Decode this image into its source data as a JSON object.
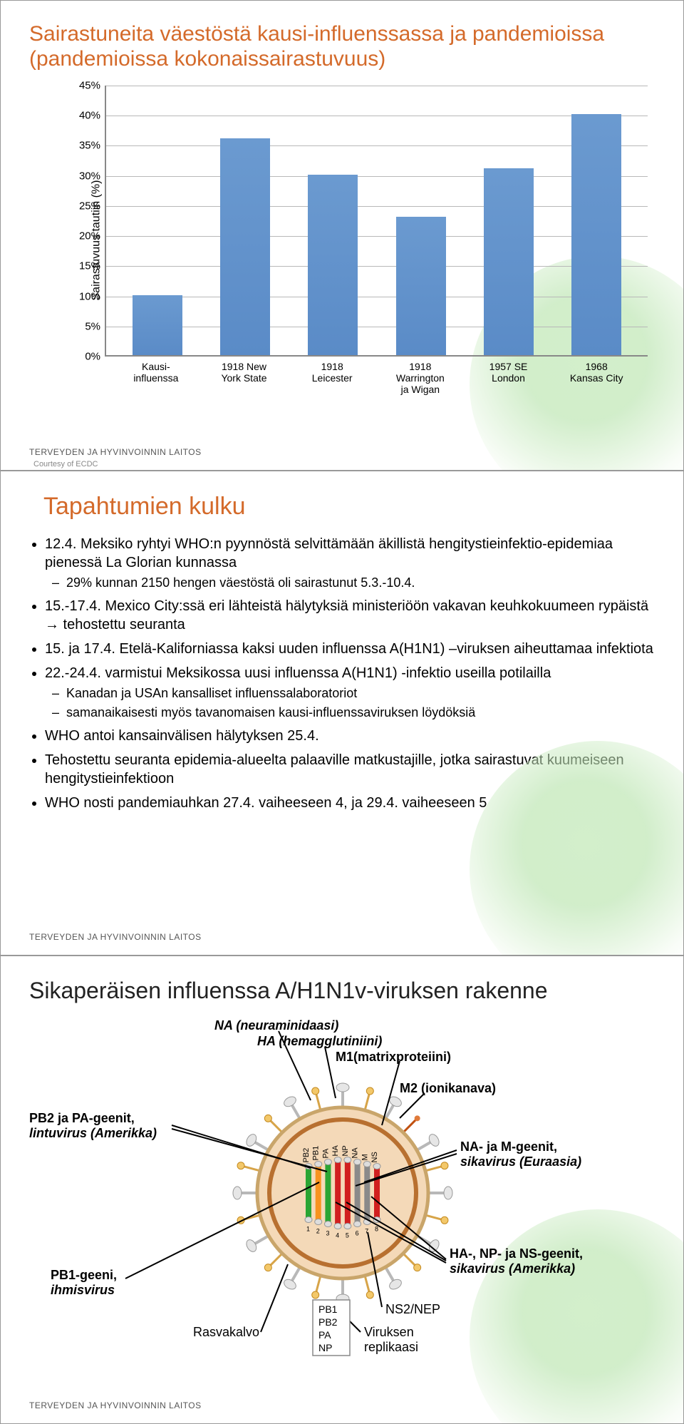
{
  "footer": "TERVEYDEN JA HYVINVOINNIN LAITOS",
  "slide1": {
    "title_color": "#d46a2a",
    "title": "Sairastuneita väestöstä kausi-influenssassa ja pandemioissa (pandemioissa kokonaissairastuvuus)",
    "y_label": "Sairastuvuus tautiin (%)",
    "y_ticks": [
      "0%",
      "5%",
      "10%",
      "15%",
      "20%",
      "25%",
      "30%",
      "35%",
      "40%",
      "45%"
    ],
    "y_max": 45,
    "bar_color": "#5a8bc7",
    "categories": [
      {
        "label": "Kausi-\ninfluenssa",
        "value": 10
      },
      {
        "label": "1918 New\nYork State",
        "value": 36
      },
      {
        "label": "1918\nLeicester",
        "value": 30
      },
      {
        "label": "1918\nWarrington\nja Wigan",
        "value": 23
      },
      {
        "label": "1957 SE\nLondon",
        "value": 31
      },
      {
        "label": "1968\nKansas City",
        "value": 40
      }
    ],
    "courtesy": "Courtesy of ECDC"
  },
  "slide2": {
    "title_color": "#d46a2a",
    "title": "Tapahtumien kulku",
    "bullets": [
      {
        "text": "12.4. Meksiko ryhtyi WHO:n pyynnöstä selvittämään äkillistä hengitystieinfektio-epidemiaa pienessä La Glorian kunnassa",
        "subs": [
          "29% kunnan 2150 hengen väestöstä oli sairastunut 5.3.-10.4."
        ]
      },
      {
        "text": "15.-17.4. Mexico City:ssä eri lähteistä hälytyksiä ministeriöön vakavan keuhkokuumeen rypäistä → tehostettu seuranta"
      },
      {
        "text": "15. ja 17.4. Etelä-Kaliforniassa kaksi uuden influenssa A(H1N1) –viruksen aiheuttamaa infektiota"
      },
      {
        "text": "22.-24.4. varmistui Meksikossa uusi influenssa A(H1N1) -infektio useilla potilailla",
        "subs": [
          "Kanadan ja USAn kansalliset influenssalaboratoriot",
          "samanaikaisesti myös tavanomaisen kausi-influenssaviruksen löydöksiä"
        ]
      },
      {
        "text": "WHO antoi kansainvälisen hälytyksen 25.4."
      },
      {
        "text": "Tehostettu seuranta epidemia-alueelta palaaville matkustajille, jotka sairastuvat kuumeiseen hengitystieinfektioon"
      },
      {
        "text": "WHO nosti pandemiauhkan 27.4. vaiheeseen 4, ja 29.4. vaiheeseen 5"
      }
    ]
  },
  "slide3": {
    "title_color": "#222222",
    "title": "Sikaperäisen influenssa A/H1N1v-viruksen rakenne",
    "labels": {
      "na": "NA (neuraminidaasi)",
      "ha": "HA (hemagglutiniini)",
      "m1": "M1(matrixproteiini)",
      "m2": "M2 (ionikanava)",
      "pb2pa_1": "PB2 ja PA-geenit,",
      "pb2pa_2": "lintuvirus (Amerikka)",
      "na_m_1": "NA- ja M-geenit,",
      "na_m_2": "sikavirus (Euraasia)",
      "pb1_1": "PB1-geeni,",
      "pb1_2": "ihmisvirus",
      "hanpns_1": "HA-, NP- ja NS-geenit,",
      "hanpns_2": "sikavirus (Amerikka)",
      "lipid": "Rasvakalvo",
      "ns2": "NS2/NEP",
      "repl_1": "Viruksen",
      "repl_2": "replikaasi",
      "pb_box": [
        "PB1",
        "PB2",
        "PA",
        "NP"
      ]
    },
    "segments": [
      {
        "name": "PB2",
        "color": "#2aa534"
      },
      {
        "name": "PB1",
        "color": "#f7931e"
      },
      {
        "name": "PA",
        "color": "#2aa534"
      },
      {
        "name": "HA",
        "color": "#d11f1f"
      },
      {
        "name": "NP",
        "color": "#d11f1f"
      },
      {
        "name": "NA",
        "color": "#8a8a8a"
      },
      {
        "name": "M",
        "color": "#8a8a8a"
      },
      {
        "name": "NS",
        "color": "#d11f1f"
      }
    ],
    "seg_numbers": [
      "1",
      "2",
      "3",
      "4",
      "5",
      "6",
      "7",
      "8"
    ]
  }
}
